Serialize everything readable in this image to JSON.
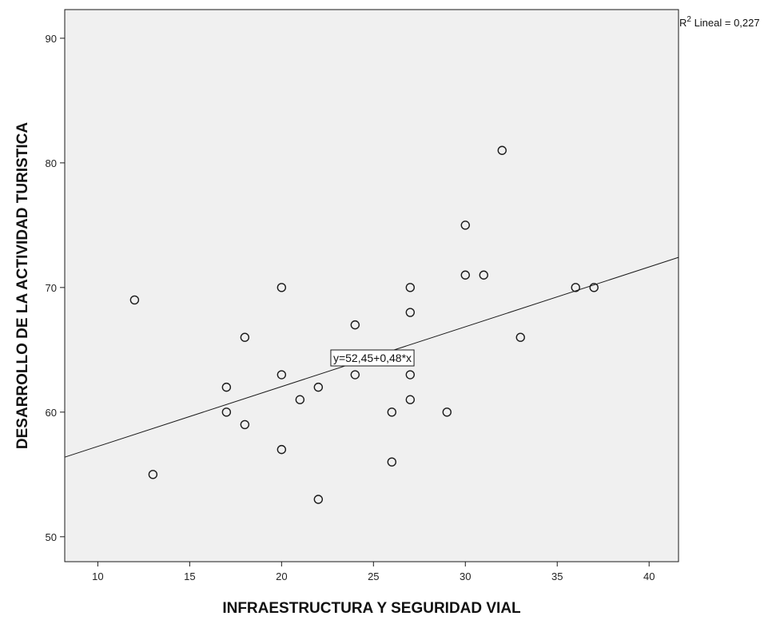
{
  "chart_data": {
    "type": "scatter",
    "xlabel": "INFRAESTRUCTURA Y SEGURIDAD VIAL",
    "ylabel": "DESARROLLO DE LA ACTIVIDAD TURISTICA",
    "xlim": [
      8.2,
      41.6
    ],
    "ylim": [
      48,
      92.3
    ],
    "xticks": [
      10,
      15,
      20,
      25,
      30,
      35,
      40
    ],
    "yticks": [
      50,
      60,
      70,
      80,
      90
    ],
    "x_tick_labels": [
      "10",
      "15",
      "20",
      "25",
      "30",
      "35",
      "40"
    ],
    "y_tick_labels": [
      "50",
      "60",
      "70",
      "80",
      "90"
    ],
    "points": [
      {
        "x": 12,
        "y": 69
      },
      {
        "x": 13,
        "y": 55
      },
      {
        "x": 17,
        "y": 62
      },
      {
        "x": 17,
        "y": 60
      },
      {
        "x": 18,
        "y": 66
      },
      {
        "x": 18,
        "y": 59
      },
      {
        "x": 20,
        "y": 70
      },
      {
        "x": 20,
        "y": 63
      },
      {
        "x": 20,
        "y": 57
      },
      {
        "x": 21,
        "y": 61
      },
      {
        "x": 22,
        "y": 62
      },
      {
        "x": 22,
        "y": 53
      },
      {
        "x": 24,
        "y": 67
      },
      {
        "x": 24,
        "y": 63
      },
      {
        "x": 26,
        "y": 60
      },
      {
        "x": 26,
        "y": 56
      },
      {
        "x": 27,
        "y": 70
      },
      {
        "x": 27,
        "y": 68
      },
      {
        "x": 27,
        "y": 63
      },
      {
        "x": 27,
        "y": 61
      },
      {
        "x": 29,
        "y": 60
      },
      {
        "x": 30,
        "y": 75
      },
      {
        "x": 30,
        "y": 71
      },
      {
        "x": 31,
        "y": 71
      },
      {
        "x": 32,
        "y": 81
      },
      {
        "x": 33,
        "y": 66
      },
      {
        "x": 36,
        "y": 70
      },
      {
        "x": 37,
        "y": 70
      }
    ],
    "fit_line": {
      "intercept": 52.45,
      "slope": 0.48
    },
    "r2_prefix": "R",
    "r2_sup": "2",
    "r2_text": " Lineal = 0,227",
    "equation_label": "y=52,45+0,48*x",
    "grid": false,
    "colors": {
      "plot_background": "#f0f0f0",
      "marker_stroke": "#1a1a1a",
      "line": "#1a1a1a",
      "frame": "#1a1a1a"
    }
  }
}
